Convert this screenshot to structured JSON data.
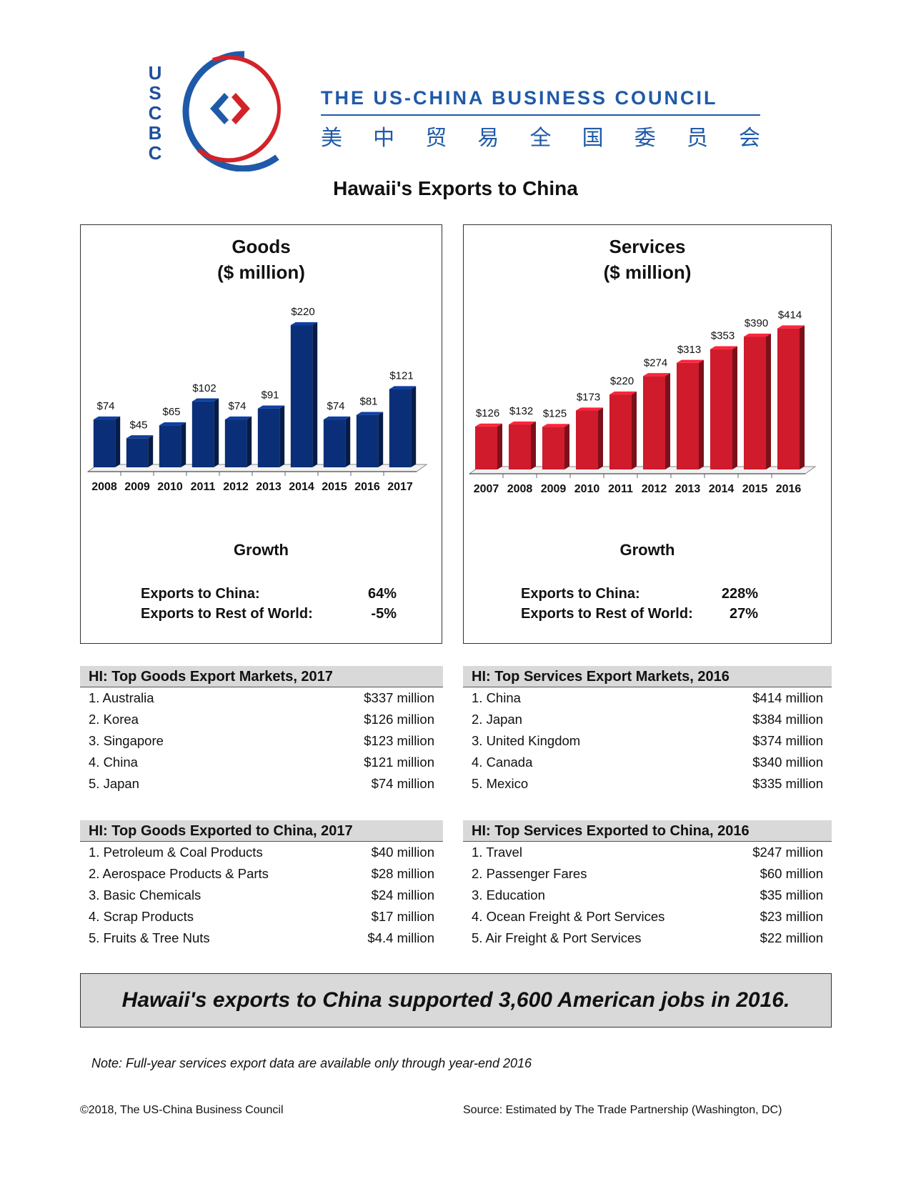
{
  "header": {
    "acronym": [
      "U",
      "S",
      "C",
      "B",
      "C"
    ],
    "org_name": "THE US-CHINA BUSINESS COUNCIL",
    "org_name_cn": [
      "美",
      "中",
      "贸",
      "易",
      "全",
      "国",
      "委",
      "员",
      "会"
    ],
    "colors": {
      "brand_blue": "#1f5aa8",
      "brand_red": "#d2232a"
    }
  },
  "page_title": "Hawaii's Exports to China",
  "chart_data": [
    {
      "type": "bar",
      "title": "Goods ($ million)",
      "title_lines": [
        "Goods",
        "($ million)"
      ],
      "categories": [
        "2008",
        "2009",
        "2010",
        "2011",
        "2012",
        "2013",
        "2014",
        "2015",
        "2016",
        "2017"
      ],
      "values": [
        74,
        45,
        65,
        102,
        74,
        91,
        220,
        74,
        81,
        121
      ],
      "data_labels": [
        "$74",
        "$45",
        "$65",
        "$102",
        "$74",
        "$91",
        "$220",
        "$74",
        "$81",
        "$121"
      ],
      "ylim": [
        0,
        230
      ],
      "color": "#0a2f78",
      "grid": false
    },
    {
      "type": "bar",
      "title": "Services ($ million)",
      "title_lines": [
        "Services",
        "($ million)"
      ],
      "categories": [
        "2007",
        "2008",
        "2009",
        "2010",
        "2011",
        "2012",
        "2013",
        "2014",
        "2015",
        "2016"
      ],
      "values": [
        126,
        132,
        125,
        173,
        220,
        274,
        313,
        353,
        390,
        414
      ],
      "data_labels": [
        "$126",
        "$132",
        "$125",
        "$173",
        "$220",
        "$274",
        "$313",
        "$353",
        "$390",
        "$414"
      ],
      "ylim": [
        0,
        430
      ],
      "color": "#cf1b2b",
      "grid": false
    }
  ],
  "goods_growth": {
    "title": "Growth",
    "china_label": "Exports to China:",
    "china_value": "64%",
    "world_label": "Exports to Rest of World:",
    "world_value": "-5%"
  },
  "services_growth": {
    "title": "Growth",
    "china_label": "Exports to China:",
    "china_value": "228%",
    "world_label": "Exports to Rest of World:",
    "world_value": "27%"
  },
  "goods_markets": {
    "title": "HI: Top Goods Export Markets, 2017",
    "rows": [
      {
        "name": "1. Australia",
        "value": "$337 million"
      },
      {
        "name": "2. Korea",
        "value": "$126 million"
      },
      {
        "name": "3. Singapore",
        "value": "$123 million"
      },
      {
        "name": "4. China",
        "value": "$121 million"
      },
      {
        "name": "5. Japan",
        "value": "$74 million"
      }
    ]
  },
  "services_markets": {
    "title": "HI: Top Services Export Markets, 2016",
    "rows": [
      {
        "name": "1. China",
        "value": "$414 million"
      },
      {
        "name": "2. Japan",
        "value": "$384 million"
      },
      {
        "name": "3. United Kingdom",
        "value": "$374 million"
      },
      {
        "name": "4. Canada",
        "value": "$340 million"
      },
      {
        "name": "5. Mexico",
        "value": "$335 million"
      }
    ]
  },
  "goods_to_china": {
    "title": "HI: Top Goods Exported to China, 2017",
    "rows": [
      {
        "name": "1. Petroleum & Coal Products",
        "value": "$40 million"
      },
      {
        "name": "2. Aerospace Products & Parts",
        "value": "$28 million"
      },
      {
        "name": "3. Basic Chemicals",
        "value": "$24 million"
      },
      {
        "name": "4. Scrap Products",
        "value": "$17 million"
      },
      {
        "name": "5. Fruits & Tree Nuts",
        "value": "$4.4 million"
      }
    ]
  },
  "services_to_china": {
    "title": "HI: Top Services Exported to China, 2016",
    "rows": [
      {
        "name": "1. Travel",
        "value": "$247 million"
      },
      {
        "name": "2. Passenger Fares",
        "value": "$60 million"
      },
      {
        "name": "3. Education",
        "value": "$35 million"
      },
      {
        "name": "4. Ocean Freight & Port Services",
        "value": "$23 million"
      },
      {
        "name": "5. Air Freight & Port Services",
        "value": "$22 million"
      }
    ]
  },
  "jobs_banner": "Hawaii's exports to China supported 3,600 American jobs in 2016.",
  "note": "Note: Full-year services export data are available only through year-end 2016",
  "footer": {
    "copyright": "©2018, The US-China Business Council",
    "source": "Source: Estimated by The Trade Partnership (Washington, DC)"
  }
}
